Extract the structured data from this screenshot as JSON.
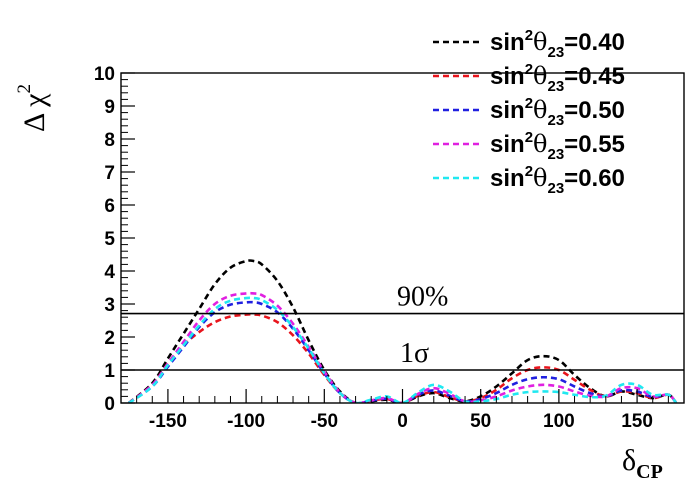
{
  "chart_data": {
    "type": "line",
    "title": "",
    "xlabel": {
      "base": "δ",
      "sub": "CP"
    },
    "ylabel": {
      "main": "Δ χ",
      "sup": "2"
    },
    "xlim": [
      -180,
      180
    ],
    "ylim": [
      0,
      10
    ],
    "x_ticks": [
      -150,
      -100,
      -50,
      0,
      50,
      100,
      150
    ],
    "x_tick_labels": [
      "-150",
      "-100",
      "-50",
      "0",
      "50",
      "100",
      "150"
    ],
    "y_ticks": [
      0,
      1,
      2,
      3,
      4,
      5,
      6,
      7,
      8,
      9,
      10
    ],
    "y_tick_labels": [
      "0",
      "1",
      "2",
      "3",
      "4",
      "5",
      "6",
      "7",
      "8",
      "9",
      "10"
    ],
    "grid": false,
    "legend_position": "top-right, outside plot",
    "reference_lines": [
      {
        "y": 2.71,
        "label": "90%"
      },
      {
        "y": 1.0,
        "label": "1σ"
      }
    ],
    "series": [
      {
        "name": "sin²θ23=0.40",
        "legend": {
          "pre": "sin",
          "sup": "2",
          "theta": "θ",
          "sub": "23",
          "post": "=0.40"
        },
        "color": "#000000",
        "x": [
          -175,
          -160,
          -150,
          -140,
          -130,
          -120,
          -110,
          -100,
          -95,
          -90,
          -80,
          -70,
          -60,
          -50,
          -40,
          -30,
          -20,
          -10,
          0,
          10,
          20,
          30,
          40,
          50,
          60,
          70,
          80,
          90,
          100,
          110,
          120,
          130,
          140,
          150,
          160,
          170,
          175
        ],
        "y": [
          0.0,
          0.6,
          1.35,
          2.1,
          2.85,
          3.6,
          4.1,
          4.3,
          4.3,
          4.2,
          3.7,
          2.9,
          1.9,
          1.0,
          0.35,
          0.0,
          0.05,
          0.1,
          0.0,
          0.2,
          0.3,
          0.15,
          0.05,
          0.2,
          0.5,
          0.9,
          1.3,
          1.42,
          1.3,
          0.85,
          0.45,
          0.2,
          0.35,
          0.25,
          0.15,
          0.25,
          0.0
        ]
      },
      {
        "name": "sin²θ23=0.45",
        "legend": {
          "pre": "sin",
          "sup": "2",
          "theta": "θ",
          "sub": "23",
          "post": "=0.45"
        },
        "color": "#e8141c",
        "x": [
          -175,
          -160,
          -150,
          -140,
          -130,
          -120,
          -110,
          -100,
          -95,
          -90,
          -80,
          -70,
          -60,
          -50,
          -40,
          -30,
          -20,
          -10,
          0,
          10,
          20,
          30,
          40,
          50,
          60,
          70,
          80,
          90,
          100,
          110,
          120,
          130,
          140,
          150,
          160,
          170,
          175
        ],
        "y": [
          0.0,
          0.55,
          1.2,
          1.75,
          2.15,
          2.45,
          2.62,
          2.68,
          2.68,
          2.65,
          2.45,
          2.05,
          1.5,
          0.85,
          0.3,
          0.0,
          0.07,
          0.12,
          0.0,
          0.22,
          0.33,
          0.18,
          0.05,
          0.15,
          0.4,
          0.75,
          1.0,
          1.08,
          1.0,
          0.7,
          0.4,
          0.2,
          0.35,
          0.3,
          0.15,
          0.25,
          0.0
        ]
      },
      {
        "name": "sin²θ23=0.50",
        "legend": {
          "pre": "sin",
          "sup": "2",
          "theta": "θ",
          "sub": "23",
          "post": "=0.50"
        },
        "color": "#2020e0",
        "x": [
          -175,
          -160,
          -150,
          -140,
          -130,
          -120,
          -110,
          -100,
          -95,
          -90,
          -80,
          -70,
          -60,
          -50,
          -40,
          -30,
          -20,
          -10,
          0,
          10,
          20,
          30,
          40,
          50,
          60,
          70,
          80,
          90,
          100,
          110,
          120,
          130,
          140,
          150,
          160,
          170,
          175
        ],
        "y": [
          0.0,
          0.5,
          1.1,
          1.7,
          2.3,
          2.75,
          2.98,
          3.05,
          3.05,
          3.0,
          2.75,
          2.25,
          1.6,
          0.9,
          0.3,
          0.0,
          0.07,
          0.13,
          0.0,
          0.25,
          0.38,
          0.22,
          0.05,
          0.12,
          0.3,
          0.55,
          0.72,
          0.78,
          0.72,
          0.5,
          0.3,
          0.2,
          0.38,
          0.35,
          0.18,
          0.25,
          0.0
        ]
      },
      {
        "name": "sin²θ23=0.55",
        "legend": {
          "pre": "sin",
          "sup": "2",
          "theta": "θ",
          "sub": "23",
          "post": "=0.55"
        },
        "color": "#e020e0",
        "x": [
          -175,
          -160,
          -150,
          -140,
          -130,
          -120,
          -110,
          -100,
          -95,
          -90,
          -80,
          -70,
          -60,
          -50,
          -40,
          -30,
          -20,
          -10,
          0,
          10,
          20,
          30,
          40,
          50,
          60,
          70,
          80,
          90,
          100,
          110,
          120,
          130,
          140,
          150,
          160,
          170,
          175
        ],
        "y": [
          0.0,
          0.55,
          1.2,
          1.85,
          2.5,
          3.0,
          3.25,
          3.32,
          3.32,
          3.27,
          2.95,
          2.4,
          1.7,
          0.95,
          0.32,
          0.0,
          0.08,
          0.15,
          0.0,
          0.28,
          0.45,
          0.28,
          0.05,
          0.08,
          0.2,
          0.38,
          0.5,
          0.55,
          0.5,
          0.35,
          0.22,
          0.2,
          0.45,
          0.45,
          0.2,
          0.25,
          0.0
        ]
      },
      {
        "name": "sin²θ23=0.60",
        "legend": {
          "pre": "sin",
          "sup": "2",
          "theta": "θ",
          "sub": "23",
          "post": "=0.60"
        },
        "color": "#20e8f0",
        "x": [
          -175,
          -160,
          -150,
          -140,
          -130,
          -120,
          -110,
          -100,
          -95,
          -90,
          -80,
          -70,
          -60,
          -50,
          -40,
          -30,
          -20,
          -10,
          0,
          10,
          20,
          30,
          40,
          50,
          60,
          70,
          80,
          90,
          100,
          110,
          120,
          130,
          140,
          150,
          160,
          170,
          175
        ],
        "y": [
          0.0,
          0.5,
          1.15,
          1.75,
          2.35,
          2.85,
          3.1,
          3.18,
          3.18,
          3.12,
          2.82,
          2.3,
          1.65,
          0.9,
          0.3,
          0.0,
          0.1,
          0.2,
          0.0,
          0.32,
          0.55,
          0.35,
          0.05,
          0.05,
          0.12,
          0.25,
          0.33,
          0.35,
          0.33,
          0.25,
          0.18,
          0.22,
          0.55,
          0.55,
          0.25,
          0.25,
          0.0
        ]
      }
    ]
  }
}
